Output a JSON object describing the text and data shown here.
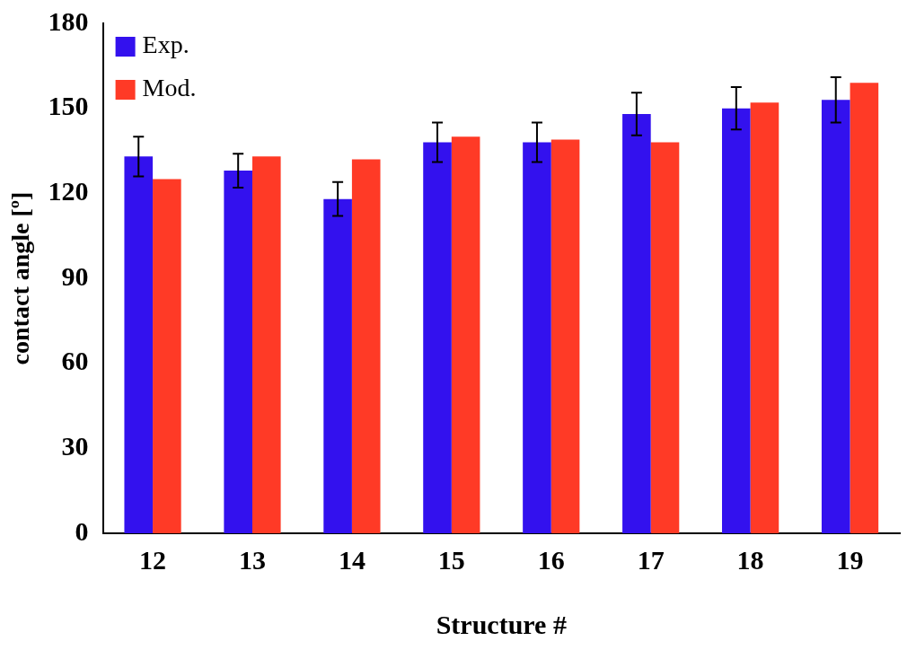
{
  "chart_data": {
    "type": "bar",
    "xlabel": "Structure #",
    "ylabel": "contact angle [º]",
    "categories": [
      "12",
      "13",
      "14",
      "15",
      "16",
      "17",
      "18",
      "19"
    ],
    "series": [
      {
        "name": "Exp.",
        "color": "#3311ee",
        "values": [
          133,
          128,
          118,
          138,
          138,
          148,
          150,
          153
        ],
        "errors": [
          7,
          6,
          6,
          7,
          7,
          7.5,
          7.5,
          8
        ]
      },
      {
        "name": "Mod.",
        "color": "#ff3a26",
        "values": [
          125,
          133,
          132,
          140,
          139,
          138,
          152,
          159
        ]
      }
    ],
    "ylim": [
      0,
      180
    ],
    "yticks": [
      0,
      30,
      60,
      90,
      120,
      150,
      180
    ],
    "grid": false,
    "legend": "top left"
  }
}
